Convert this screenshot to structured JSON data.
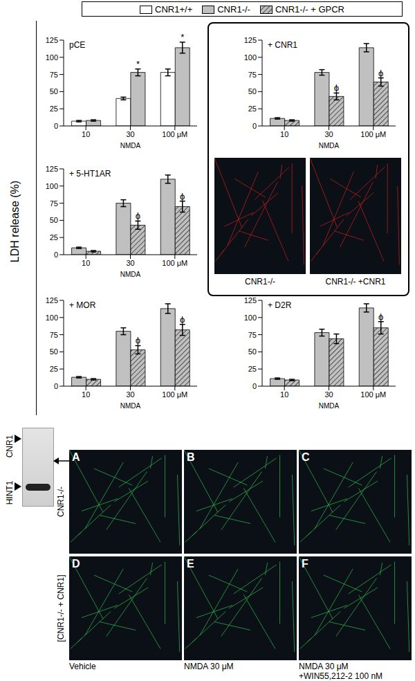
{
  "ylabel": "LDH release (%)",
  "chart_data": [
    {
      "type": "bar",
      "title": "pCE",
      "categories": [
        "10",
        "30",
        "100 μM"
      ],
      "xlabel": "NMDA",
      "ylim": [
        0,
        125
      ],
      "yticks": [
        0,
        25,
        50,
        75,
        100,
        125
      ],
      "grid": false,
      "series": [
        {
          "name": "CNR1+/+",
          "color": "#ffffff",
          "values": [
            7,
            40,
            78
          ],
          "errors": [
            1,
            2,
            5
          ],
          "annotations": [
            null,
            null,
            null
          ]
        },
        {
          "name": "CNR1-/-",
          "color": "#c0c0c0",
          "values": [
            8,
            78,
            114
          ],
          "errors": [
            1,
            5,
            8
          ],
          "annotations": [
            null,
            "*",
            "*"
          ]
        }
      ]
    },
    {
      "type": "bar",
      "title": "+ CNR1",
      "categories": [
        "10",
        "30",
        "100 μM"
      ],
      "xlabel": "NMDA",
      "ylim": [
        0,
        125
      ],
      "yticks": [
        0,
        25,
        50,
        75,
        100,
        125
      ],
      "grid": false,
      "series": [
        {
          "name": "CNR1-/-",
          "color": "#c0c0c0",
          "values": [
            11,
            78,
            114
          ],
          "errors": [
            1,
            4,
            6
          ],
          "annotations": [
            null,
            null,
            null
          ]
        },
        {
          "name": "CNR1-/- + GPCR",
          "color": "#c0c0c0",
          "line_style": "hatched",
          "values": [
            8,
            43,
            64
          ],
          "errors": [
            1,
            5,
            6
          ],
          "annotations": [
            null,
            "ϕ",
            "ϕ"
          ]
        }
      ]
    },
    {
      "type": "bar",
      "title": "+ 5-HT1AR",
      "categories": [
        "10",
        "30",
        "100 μM"
      ],
      "xlabel": "NMDA",
      "ylim": [
        0,
        125
      ],
      "yticks": [
        0,
        25,
        50,
        75,
        100,
        125
      ],
      "grid": false,
      "series": [
        {
          "name": "CNR1-/-",
          "color": "#c0c0c0",
          "values": [
            10,
            75,
            110
          ],
          "errors": [
            1,
            5,
            6
          ],
          "annotations": [
            null,
            null,
            null
          ]
        },
        {
          "name": "CNR1-/- + GPCR",
          "color": "#c0c0c0",
          "line_style": "hatched",
          "values": [
            5,
            43,
            70
          ],
          "errors": [
            1,
            6,
            8
          ],
          "annotations": [
            null,
            "ϕ",
            "ϕ"
          ]
        }
      ]
    },
    {
      "type": "bar",
      "title": "+ MOR",
      "categories": [
        "10",
        "30",
        "100 μM"
      ],
      "xlabel": "NMDA",
      "ylim": [
        0,
        125
      ],
      "yticks": [
        0,
        25,
        50,
        75,
        100,
        125
      ],
      "grid": false,
      "series": [
        {
          "name": "CNR1-/-",
          "color": "#c0c0c0",
          "values": [
            13,
            80,
            113
          ],
          "errors": [
            1,
            5,
            7
          ],
          "annotations": [
            null,
            null,
            null
          ]
        },
        {
          "name": "CNR1-/- + GPCR",
          "color": "#c0c0c0",
          "line_style": "hatched",
          "values": [
            10,
            53,
            82
          ],
          "errors": [
            1,
            6,
            8
          ],
          "annotations": [
            null,
            "ϕ",
            "ϕ"
          ]
        }
      ]
    },
    {
      "type": "bar",
      "title": "+ D2R",
      "categories": [
        "10",
        "30",
        "100 μM"
      ],
      "xlabel": "NMDA",
      "ylim": [
        0,
        125
      ],
      "yticks": [
        0,
        25,
        50,
        75,
        100,
        125
      ],
      "grid": false,
      "series": [
        {
          "name": "CNR1-/-",
          "color": "#c0c0c0",
          "values": [
            11,
            78,
            114
          ],
          "errors": [
            1,
            5,
            6
          ],
          "annotations": [
            null,
            null,
            null
          ]
        },
        {
          "name": "CNR1-/- + GPCR",
          "color": "#c0c0c0",
          "line_style": "hatched",
          "values": [
            9,
            69,
            85
          ],
          "errors": [
            1,
            7,
            9
          ],
          "annotations": [
            null,
            null,
            "ϕ"
          ]
        }
      ]
    }
  ],
  "inset_images": [
    "CNR1-/-",
    "CNR1-/- +CNR1"
  ],
  "blot": {
    "bands": [
      "CNR1",
      "HINT1"
    ]
  },
  "micrographs": {
    "panels": [
      "A",
      "B",
      "C",
      "D",
      "E",
      "F"
    ],
    "rows": [
      "CNR1-/-",
      "[CNR1-/- + CNR1]"
    ],
    "columns": [
      [
        "Vehicle"
      ],
      [
        "NMDA 30 μM"
      ],
      [
        "NMDA 30 μM",
        "+WIN55,212-2 100 nM"
      ]
    ]
  }
}
